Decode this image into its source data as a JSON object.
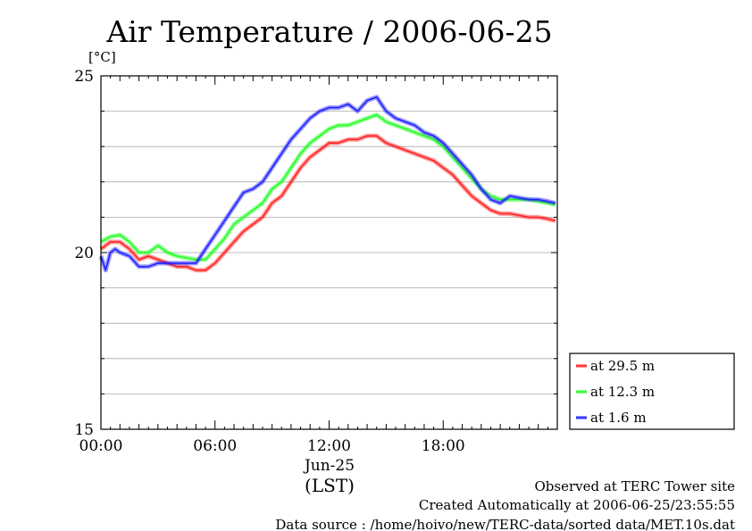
{
  "chart_data": {
    "type": "line",
    "title": "Air Temperature / 2006-06-25",
    "ylabel": "[°C]",
    "xlabel": "(LST)",
    "date_label": "Jun-25",
    "ylim": [
      15,
      25
    ],
    "xlim": [
      0,
      24
    ],
    "y_ticks": [
      "15",
      "20",
      "25"
    ],
    "x_ticks": [
      {
        "value": 0,
        "label": "00:00"
      },
      {
        "value": 6,
        "label": "06:00"
      },
      {
        "value": 12,
        "label": "12:00"
      },
      {
        "value": 18,
        "label": "18:00"
      }
    ],
    "grid": "horizontal",
    "legend_position": "right",
    "footer": [
      "Observed at TERC Tower site",
      "Created Automatically at 2006-06-25/23:55:55",
      "Data source : /home/hoivo/new/TERC-data/sorted  data/MET.10s.dat"
    ],
    "series": [
      {
        "name": "at 29.5 m",
        "color": "#ff2020",
        "x": [
          0,
          0.5,
          1,
          1.5,
          2,
          2.5,
          3,
          3.5,
          4,
          4.5,
          5,
          5.5,
          6,
          6.5,
          7,
          7.5,
          8,
          8.5,
          9,
          9.5,
          10,
          10.5,
          11,
          11.5,
          12,
          12.5,
          13,
          13.5,
          14,
          14.5,
          15,
          15.5,
          16,
          16.5,
          17,
          17.5,
          18,
          18.5,
          19,
          19.5,
          20,
          20.5,
          21,
          21.5,
          22,
          22.5,
          23,
          23.5,
          23.9
        ],
        "y": [
          20.1,
          20.3,
          20.3,
          20.1,
          19.8,
          19.9,
          19.8,
          19.7,
          19.6,
          19.6,
          19.5,
          19.5,
          19.7,
          20.0,
          20.3,
          20.6,
          20.8,
          21.0,
          21.4,
          21.6,
          22.0,
          22.4,
          22.7,
          22.9,
          23.1,
          23.1,
          23.2,
          23.2,
          23.3,
          23.3,
          23.1,
          23.0,
          22.9,
          22.8,
          22.7,
          22.6,
          22.4,
          22.2,
          21.9,
          21.6,
          21.4,
          21.2,
          21.1,
          21.1,
          21.05,
          21.0,
          21.0,
          20.95,
          20.9
        ]
      },
      {
        "name": "at 12.3 m",
        "color": "#20ff20",
        "x": [
          0,
          0.5,
          1,
          1.5,
          2,
          2.5,
          3,
          3.5,
          4,
          4.5,
          5,
          5.5,
          6,
          6.5,
          7,
          7.5,
          8,
          8.5,
          9,
          9.5,
          10,
          10.5,
          11,
          11.5,
          12,
          12.5,
          13,
          13.5,
          14,
          14.5,
          15,
          15.5,
          16,
          16.5,
          17,
          17.5,
          18,
          18.5,
          19,
          19.5,
          20,
          20.5,
          21,
          21.5,
          22,
          22.5,
          23,
          23.5,
          23.9
        ],
        "y": [
          20.3,
          20.45,
          20.5,
          20.3,
          20.0,
          20.0,
          20.2,
          20.0,
          19.9,
          19.85,
          19.8,
          19.8,
          20.1,
          20.4,
          20.8,
          21.0,
          21.2,
          21.4,
          21.8,
          22.0,
          22.4,
          22.8,
          23.1,
          23.3,
          23.5,
          23.6,
          23.6,
          23.7,
          23.8,
          23.9,
          23.7,
          23.6,
          23.5,
          23.4,
          23.3,
          23.2,
          23.0,
          22.7,
          22.4,
          22.1,
          21.8,
          21.6,
          21.5,
          21.5,
          21.5,
          21.5,
          21.45,
          21.4,
          21.35
        ]
      },
      {
        "name": "at 1.6 m",
        "color": "#2020ff",
        "x": [
          0,
          0.25,
          0.5,
          0.75,
          1,
          1.5,
          2,
          2.5,
          3,
          3.5,
          4,
          4.5,
          5,
          5.5,
          6,
          6.5,
          7,
          7.5,
          8,
          8.5,
          9,
          9.5,
          10,
          10.5,
          11,
          11.5,
          12,
          12.5,
          13,
          13.5,
          14,
          14.5,
          15,
          15.5,
          16,
          16.5,
          17,
          17.5,
          18,
          18.5,
          19,
          19.5,
          20,
          20.5,
          21,
          21.5,
          22,
          22.5,
          23,
          23.5,
          23.9
        ],
        "y": [
          19.9,
          19.5,
          20.0,
          20.1,
          20.0,
          19.9,
          19.6,
          19.6,
          19.7,
          19.7,
          19.7,
          19.7,
          19.7,
          20.1,
          20.5,
          20.9,
          21.3,
          21.7,
          21.8,
          22.0,
          22.4,
          22.8,
          23.2,
          23.5,
          23.8,
          24.0,
          24.1,
          24.1,
          24.2,
          24.0,
          24.3,
          24.4,
          24.0,
          23.8,
          23.7,
          23.6,
          23.4,
          23.3,
          23.1,
          22.8,
          22.5,
          22.2,
          21.8,
          21.5,
          21.4,
          21.6,
          21.55,
          21.5,
          21.5,
          21.45,
          21.4
        ]
      }
    ]
  }
}
